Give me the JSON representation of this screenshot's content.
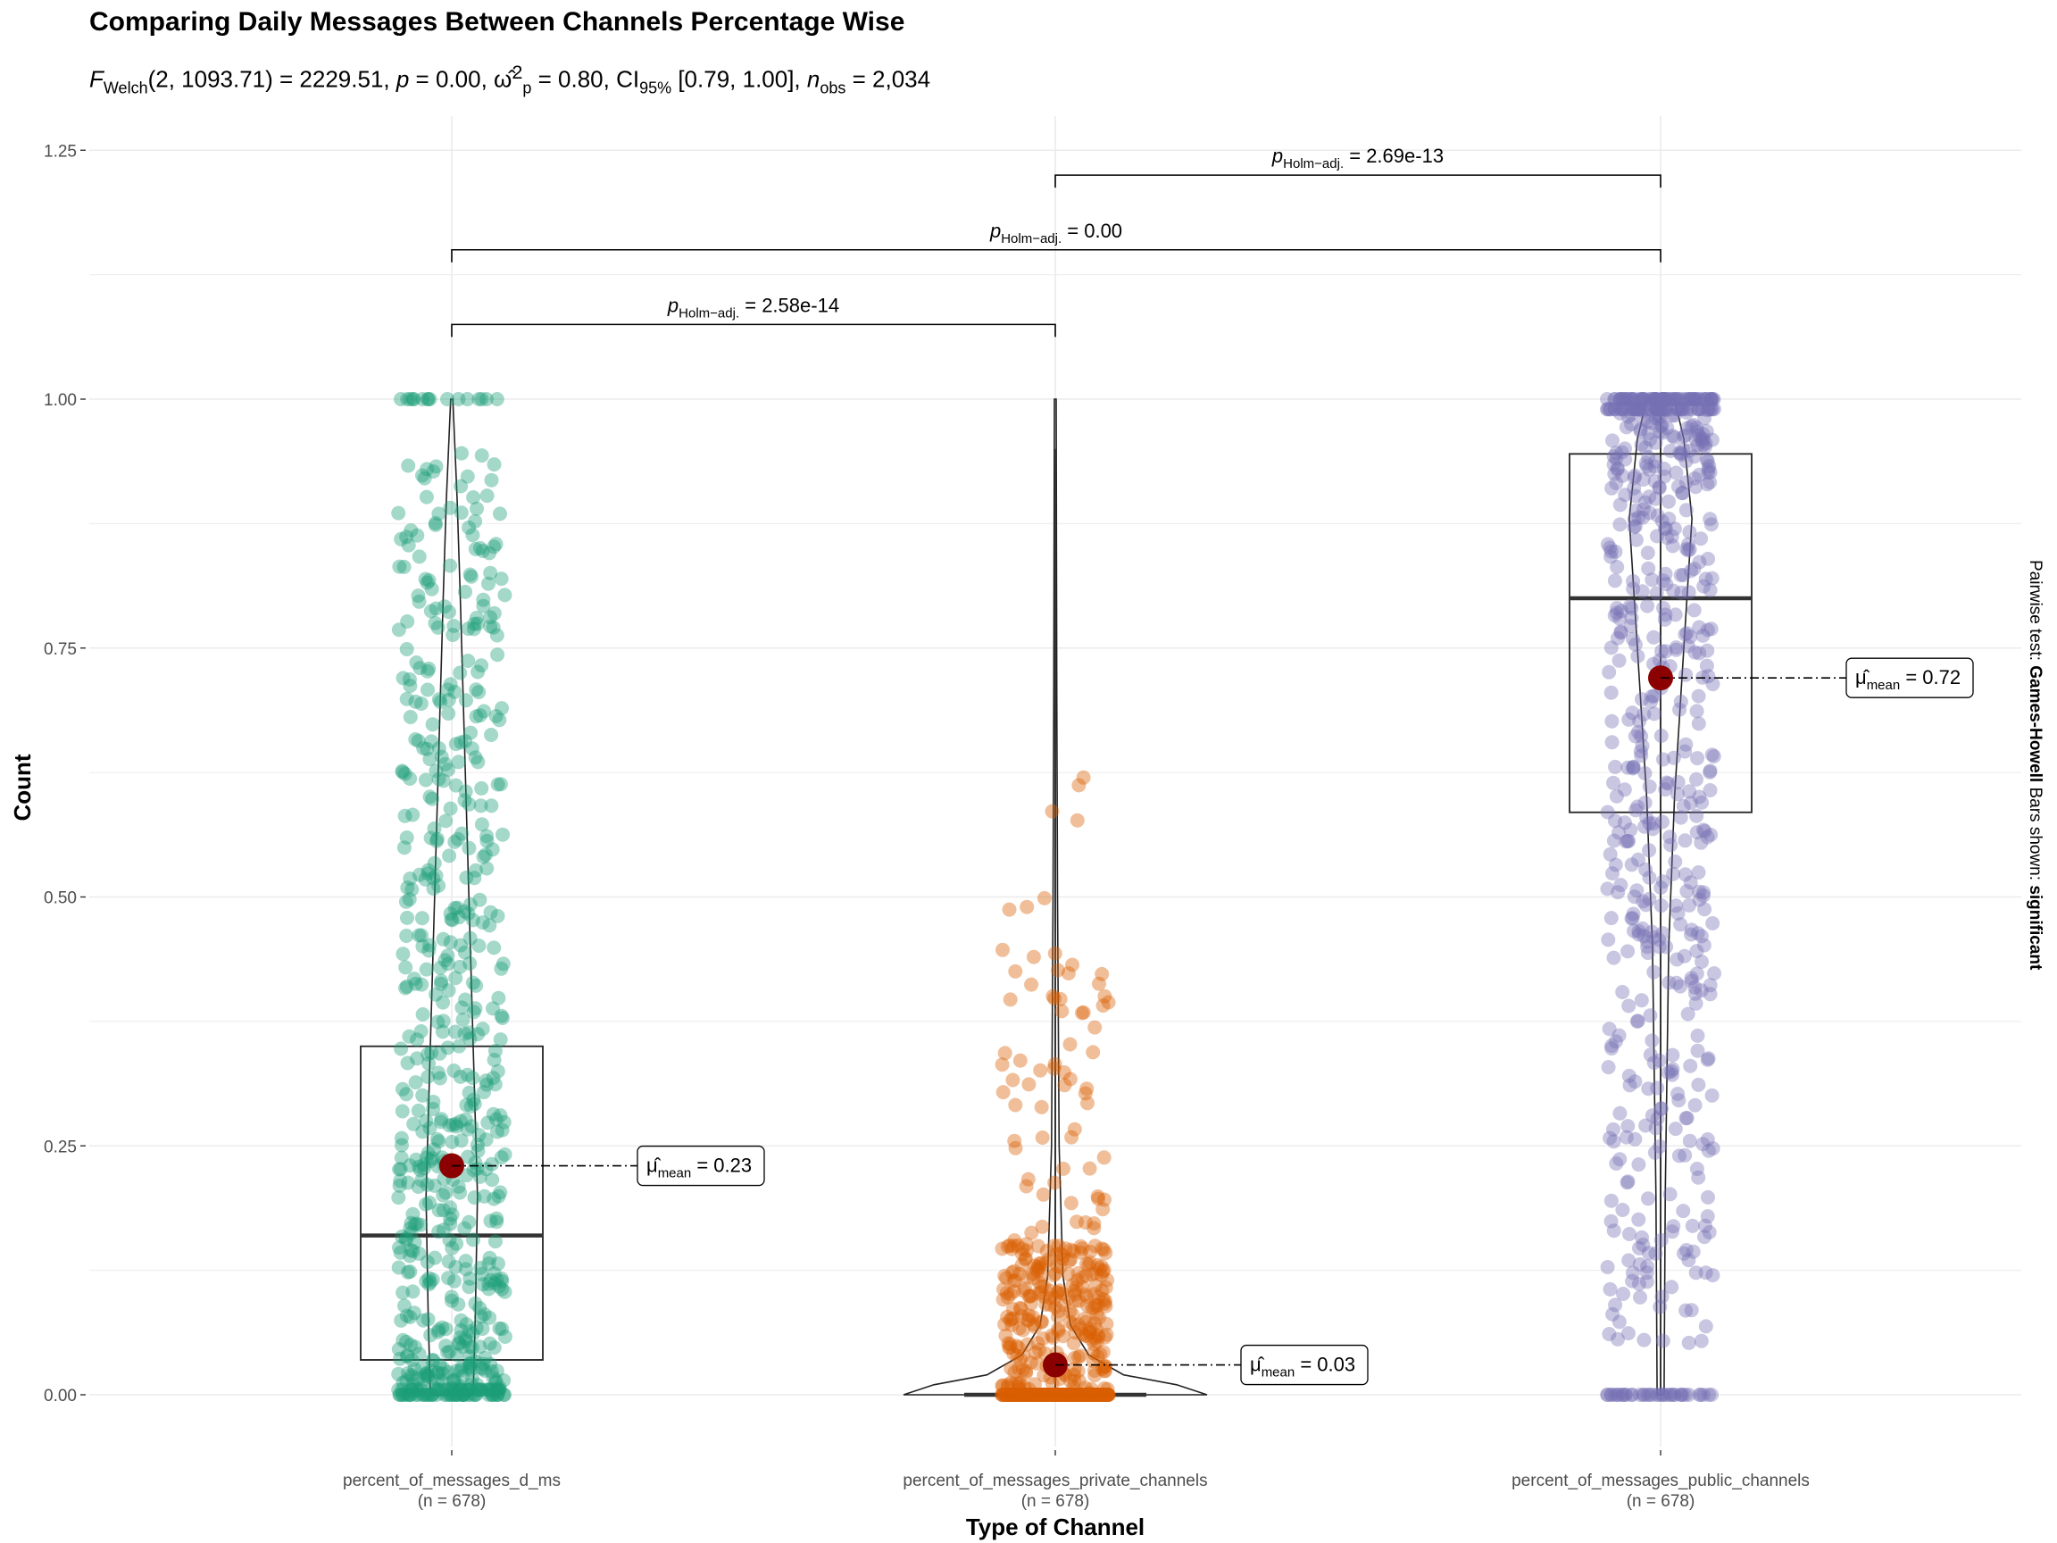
{
  "title": "Comparing Daily Messages Between Channels Percentage Wise",
  "subtitle": {
    "f_symbol": "F",
    "f_sub": "Welch",
    "stat": "(2, 1093.71) = 2229.51, ",
    "p_symbol": "p",
    "p_value": " = 0.00, ",
    "omega_symbol": "ω̂",
    "omega_sub": "p",
    "omega_sup": "2",
    "omega_value": " = 0.80, CI",
    "ci_sub": "95%",
    "ci_value": " [0.79, 1.00], ",
    "n_symbol": "n",
    "n_sub": "obs",
    "n_value": " = 2,034"
  },
  "side_caption": {
    "prefix": "Pairwise test: ",
    "test": "Games-Howell",
    "middle": " Bars shown: ",
    "shown": "significant"
  },
  "colors": {
    "dms": "#1B9E77",
    "private": "#D95F02",
    "public": "#7570B3",
    "mean_point": "#8B0000",
    "grid": "#ebebeb"
  },
  "chart_data": {
    "type": "violin-box-scatter",
    "xlabel": "Type of Channel",
    "ylabel": "Count",
    "ylim": [
      -0.07,
      1.28
    ],
    "yticks": [
      0.0,
      0.25,
      0.5,
      0.75,
      1.0,
      1.25
    ],
    "ytick_labels": [
      "0.00",
      "0.25",
      "0.50",
      "0.75",
      "1.00",
      "1.25"
    ],
    "grid": true,
    "categories": [
      {
        "key": "dms",
        "label": "percent_of_messages_d_ms",
        "n_label": "(n = 678)",
        "mean": 0.23,
        "mean_label": "0.23",
        "box": {
          "q1": 0.035,
          "median": 0.16,
          "q3": 0.35
        }
      },
      {
        "key": "private",
        "label": "percent_of_messages_private_channels",
        "n_label": "(n = 678)",
        "mean": 0.03,
        "mean_label": "0.03",
        "box": {
          "q1": 0.0,
          "median": 0.0,
          "q3": 0.0
        }
      },
      {
        "key": "public",
        "label": "percent_of_messages_public_channels",
        "n_label": "(n = 678)",
        "mean": 0.72,
        "mean_label": "0.72",
        "box": {
          "q1": 0.585,
          "median": 0.8,
          "q3": 0.945
        }
      }
    ],
    "mean_label_prefix": "μ̂",
    "mean_label_sub": "mean",
    "pairwise": [
      {
        "from": 0,
        "to": 1,
        "y": 1.075,
        "p_symbol": "p",
        "p_sub": "Holm−adj.",
        "value": "= 2.58e-14"
      },
      {
        "from": 0,
        "to": 2,
        "y": 1.15,
        "p_symbol": "p",
        "p_sub": "Holm−adj.",
        "value": "= 0.00"
      },
      {
        "from": 1,
        "to": 2,
        "y": 1.225,
        "p_symbol": "p",
        "p_sub": "Holm−adj.",
        "value": "= 2.69e-13"
      }
    ]
  }
}
